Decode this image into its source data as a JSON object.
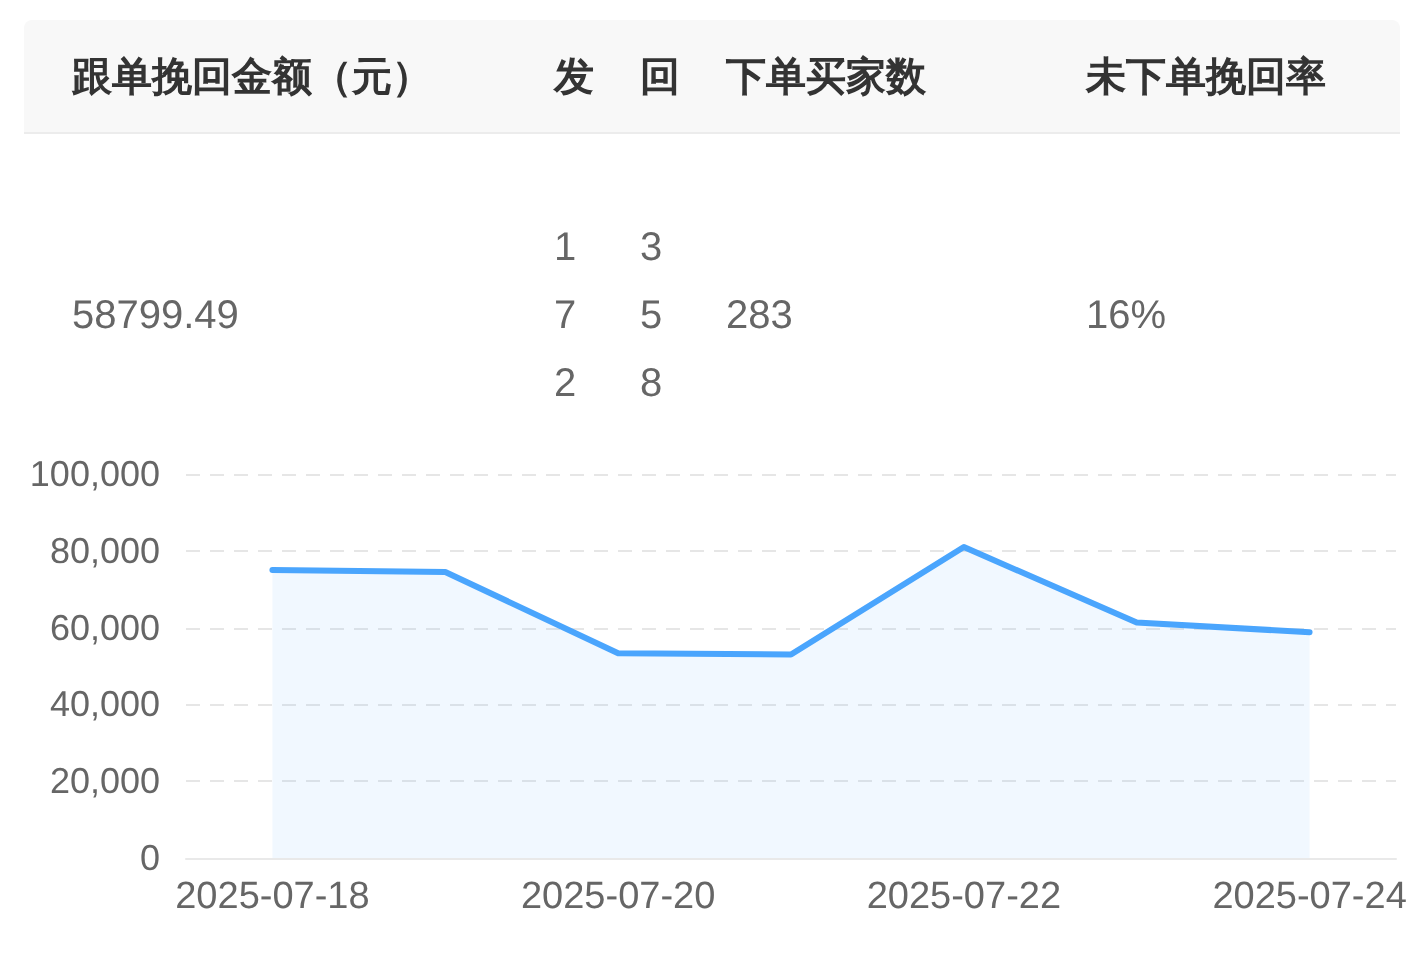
{
  "chart_data": [
    {
      "type": "other",
      "annotations": [
        "跟单挽回金额（元）",
        "发",
        "回",
        "下单买家数",
        "未下单挽回率",
        "58799.49",
        "172",
        "358",
        "283",
        "16%"
      ]
    },
    {
      "type": "area",
      "categories": [
        "2025-07-18",
        null,
        "2025-07-20",
        null,
        "2025-07-22",
        null,
        "2025-07-24"
      ],
      "values": [
        75000,
        74500,
        53300,
        53000,
        81000,
        61300,
        58800
      ],
      "color": "#4aa5fd",
      "ylim": [
        0,
        100000
      ],
      "yticks": [
        0,
        {
          "value": 20000,
          "label": "20,000"
        },
        {
          "value": 40000,
          "label": "40,000"
        },
        {
          "value": 60000,
          "label": "60,000"
        },
        {
          "value": 80000,
          "label": "80,000"
        },
        {
          "value": 100000,
          "label": "100,000"
        }
      ],
      "grid": "y",
      "marker": "none"
    }
  ]
}
